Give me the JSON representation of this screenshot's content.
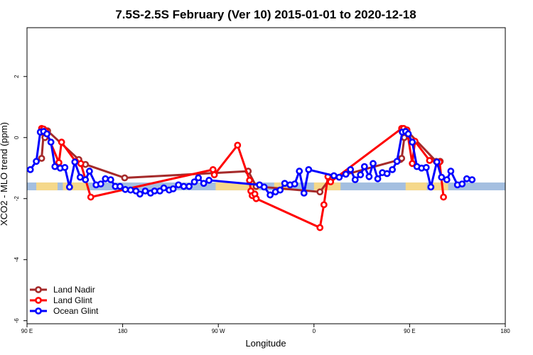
{
  "chart_data": {
    "type": "line",
    "title": "7.5S-2.5S February (Ver 10)   2015-01-01 to 2020-12-18",
    "xlabel": "Longitude",
    "ylabel": "XCO2 - MLO trend (ppm)",
    "xlim": [
      90,
      450
    ],
    "ylim": [
      -6.1,
      3.6
    ],
    "x_ticks": [
      {
        "value": 90,
        "label": "90 E"
      },
      {
        "value": 162,
        "label": "180"
      },
      {
        "value": 234,
        "label": "90 W"
      },
      {
        "value": 306,
        "label": "0"
      },
      {
        "value": 378,
        "label": "90 E"
      },
      {
        "value": 450,
        "label": "180"
      }
    ],
    "y_ticks": [
      {
        "value": 2,
        "label": "2"
      },
      {
        "value": 0,
        "label": "0"
      },
      {
        "value": -2,
        "label": "-2"
      },
      {
        "value": -4,
        "label": "-4"
      },
      {
        "value": -6,
        "label": "-6"
      }
    ],
    "grid": false,
    "legend_position": "bottom-left",
    "surface_strip": {
      "y": -1.6,
      "ocean_color": "#a4bfe0",
      "land_color": "#f5d88a",
      "land_ranges": [
        [
          97,
          113
        ],
        [
          117,
          135
        ],
        [
          232,
          265
        ],
        [
          276,
          287
        ],
        [
          306,
          326
        ],
        [
          375,
          391
        ],
        [
          393,
          407
        ]
      ]
    },
    "series": [
      {
        "name": "Land Nadir",
        "color": "#a52a2a",
        "points": [
          [
            101,
            -0.68
          ],
          [
            102.5,
            0.15
          ],
          [
            103.5,
            0.0
          ],
          [
            105.5,
            0.22
          ],
          [
            129,
            -0.72
          ],
          [
            134,
            -0.88
          ],
          [
            163.5,
            -1.32
          ],
          [
            256.5,
            -1.1
          ],
          [
            262.5,
            -1.6
          ],
          [
            310.5,
            -1.78
          ],
          [
            318,
            -1.35
          ],
          [
            371,
            -0.72
          ],
          [
            372,
            -0.68
          ],
          [
            374,
            0.0
          ],
          [
            376,
            0.22
          ],
          [
            398,
            -0.78
          ],
          [
            401,
            -0.78
          ]
        ]
      },
      {
        "name": "Land Glint",
        "color": "#ff0000",
        "points": [
          [
            101,
            0.3
          ],
          [
            102.5,
            0.28
          ],
          [
            104,
            0.22
          ],
          [
            114,
            -0.82
          ],
          [
            116,
            -0.15
          ],
          [
            126.5,
            -0.78
          ],
          [
            130.5,
            -0.85
          ],
          [
            138,
            -1.95
          ],
          [
            230,
            -1.05
          ],
          [
            231,
            -1.22
          ],
          [
            248.5,
            -0.25
          ],
          [
            257.5,
            -1.4
          ],
          [
            258.5,
            -1.75
          ],
          [
            259.5,
            -1.9
          ],
          [
            261.5,
            -1.85
          ],
          [
            262.5,
            -2.0
          ],
          [
            310.5,
            -2.95
          ],
          [
            313.5,
            -2.2
          ],
          [
            316.5,
            -1.28
          ],
          [
            318.5,
            -1.45
          ],
          [
            372,
            0.3
          ],
          [
            373.5,
            0.3
          ],
          [
            376,
            0.25
          ],
          [
            380,
            -0.85
          ],
          [
            382,
            -0.12
          ],
          [
            393,
            -0.75
          ],
          [
            400.5,
            -0.8
          ],
          [
            403.5,
            -1.95
          ]
        ]
      },
      {
        "name": "Ocean Glint",
        "color": "#0000ff",
        "points": [
          [
            92.5,
            -1.05
          ],
          [
            97,
            -0.78
          ],
          [
            100,
            0.18
          ],
          [
            102.5,
            0.2
          ],
          [
            105,
            0.12
          ],
          [
            108,
            -0.15
          ],
          [
            111,
            -0.95
          ],
          [
            115,
            -1.0
          ],
          [
            118.5,
            -0.98
          ],
          [
            122,
            -1.62
          ],
          [
            126,
            -0.8
          ],
          [
            130,
            -1.3
          ],
          [
            134,
            -1.38
          ],
          [
            137,
            -1.1
          ],
          [
            142,
            -1.55
          ],
          [
            145.5,
            -1.52
          ],
          [
            149,
            -1.35
          ],
          [
            153,
            -1.38
          ],
          [
            156.5,
            -1.6
          ],
          [
            160,
            -1.6
          ],
          [
            164,
            -1.7
          ],
          [
            168,
            -1.72
          ],
          [
            172,
            -1.75
          ],
          [
            175,
            -1.85
          ],
          [
            179,
            -1.75
          ],
          [
            183,
            -1.82
          ],
          [
            186,
            -1.75
          ],
          [
            190,
            -1.75
          ],
          [
            193,
            -1.65
          ],
          [
            197,
            -1.72
          ],
          [
            200,
            -1.68
          ],
          [
            204,
            -1.55
          ],
          [
            208,
            -1.6
          ],
          [
            212,
            -1.6
          ],
          [
            216,
            -1.45
          ],
          [
            219,
            -1.32
          ],
          [
            223,
            -1.5
          ],
          [
            227,
            -1.4
          ],
          [
            265,
            -1.55
          ],
          [
            268.5,
            -1.62
          ],
          [
            273,
            -1.88
          ],
          [
            277,
            -1.78
          ],
          [
            280.5,
            -1.72
          ],
          [
            284,
            -1.5
          ],
          [
            288,
            -1.55
          ],
          [
            291.5,
            -1.52
          ],
          [
            295,
            -1.1
          ],
          [
            298.5,
            -1.82
          ],
          [
            302,
            -1.05
          ],
          [
            321,
            -1.25
          ],
          [
            325,
            -1.3
          ],
          [
            330,
            -1.2
          ],
          [
            333.5,
            -1.05
          ],
          [
            337,
            -1.38
          ],
          [
            341,
            -1.22
          ],
          [
            344,
            -0.95
          ],
          [
            347.5,
            -1.28
          ],
          [
            350.5,
            -0.85
          ],
          [
            354,
            -1.35
          ],
          [
            357.5,
            -1.15
          ],
          [
            361,
            -1.18
          ],
          [
            365,
            -1.05
          ],
          [
            368.5,
            -0.78
          ],
          [
            372.5,
            0.18
          ],
          [
            375,
            0.2
          ],
          [
            377,
            0.12
          ],
          [
            380,
            -0.15
          ],
          [
            383.5,
            -0.95
          ],
          [
            387,
            -1.0
          ],
          [
            390.5,
            -0.98
          ],
          [
            394,
            -1.62
          ],
          [
            398.5,
            -0.8
          ],
          [
            402,
            -1.3
          ],
          [
            406,
            -1.38
          ],
          [
            409,
            -1.1
          ],
          [
            414,
            -1.55
          ],
          [
            417.5,
            -1.52
          ],
          [
            421,
            -1.35
          ],
          [
            425,
            -1.38
          ]
        ]
      }
    ]
  }
}
